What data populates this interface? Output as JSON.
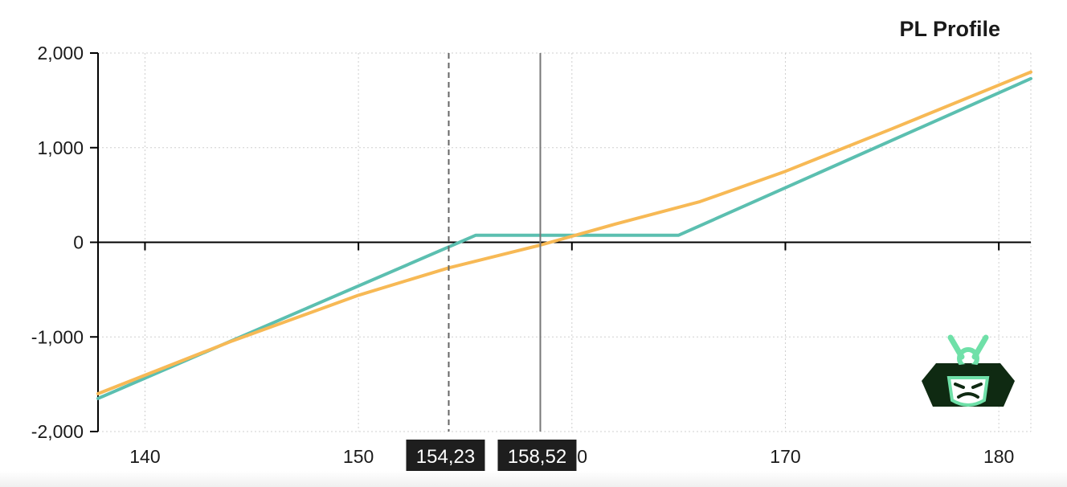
{
  "chart_data": {
    "type": "line",
    "title": "PL Profile",
    "xlabel": "",
    "ylabel": "",
    "xlim": [
      137.8,
      181.5
    ],
    "ylim": [
      -2000,
      2000
    ],
    "x_ticks": [
      140,
      150,
      160,
      170,
      180
    ],
    "y_ticks": [
      2000,
      1000,
      0,
      -1000,
      -2000
    ],
    "x_tick_labels": [
      "140",
      "150",
      "160",
      "170",
      "180"
    ],
    "y_tick_labels": [
      "2,000",
      "1,000",
      "0",
      "-1,000",
      "-2,000"
    ],
    "grid": true,
    "series": [
      {
        "color": "#5bbfb0",
        "points": [
          [
            137.8,
            -1650
          ],
          [
            155.5,
            75
          ],
          [
            165,
            75
          ],
          [
            181.5,
            1730
          ]
        ]
      },
      {
        "color": "#f7b955",
        "points": [
          [
            137.8,
            -1600
          ],
          [
            144,
            -1050
          ],
          [
            150,
            -560
          ],
          [
            154.23,
            -270
          ],
          [
            158.52,
            -30
          ],
          [
            162,
            190
          ],
          [
            166,
            430
          ],
          [
            170,
            750
          ],
          [
            175,
            1200
          ],
          [
            181.5,
            1800
          ]
        ]
      }
    ],
    "markers": [
      {
        "x": 154.23,
        "label": "154,23",
        "style": "dashed"
      },
      {
        "x": 158.52,
        "label": "158,52",
        "style": "solid"
      }
    ],
    "logo": "samurai-helmet-icon",
    "colors": {
      "marker_bg": "#1e1e1e",
      "logo_dark": "#0f2a12",
      "logo_accent": "#6fe0a8"
    }
  }
}
